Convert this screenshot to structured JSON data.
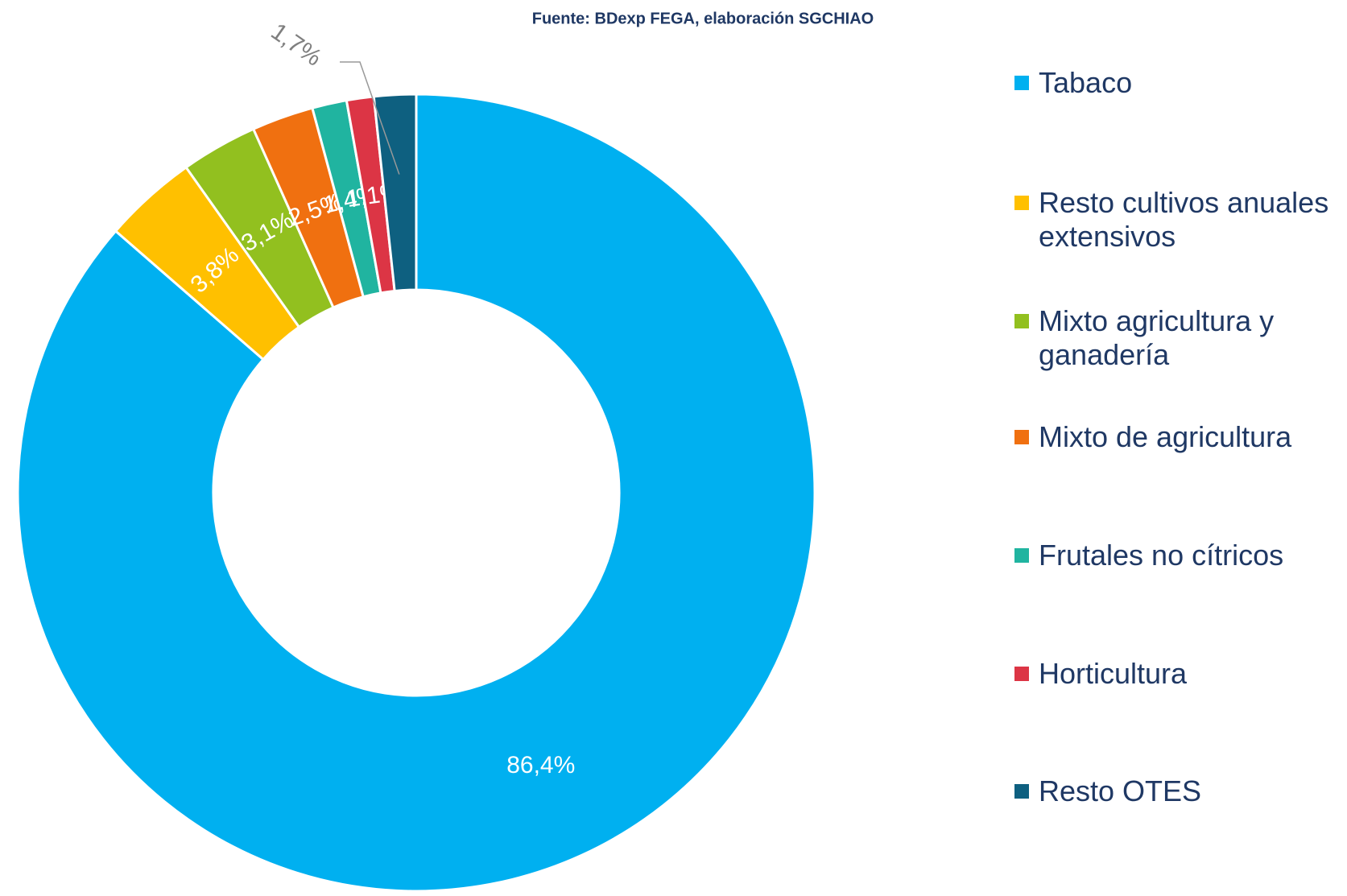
{
  "chart_data": {
    "type": "donut",
    "source": "Fuente: BDexp FEGA, elaboración SGCHIAO",
    "categories": [
      "Tabaco",
      "Resto cultivos anuales extensivos",
      "Mixto agricultura y ganadería",
      "Mixto de agricultura",
      "Frutales no cítricos",
      "Horticultura",
      "Resto OTES"
    ],
    "values": [
      86.4,
      3.8,
      3.1,
      2.5,
      1.4,
      1.1,
      1.7
    ],
    "value_labels": [
      "86,4%",
      "3,8%",
      "3,1%",
      "2,5%",
      "1,4%",
      "1,1%",
      "1,7%"
    ],
    "colors": [
      "#00b0f0",
      "#ffc000",
      "#92c01f",
      "#f07010",
      "#20b4a0",
      "#dc3545",
      "#0e6080"
    ],
    "legend": "right"
  }
}
